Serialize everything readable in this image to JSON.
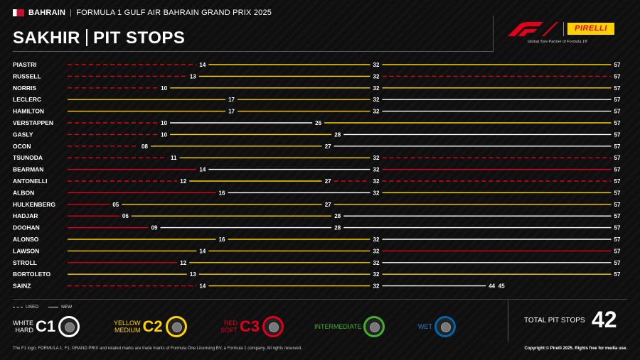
{
  "header": {
    "country": "BAHRAIN",
    "event": "FORMULA 1 GULF AIR BAHRAIN GRAND PRIX 2025",
    "title_left": "SAKHIR",
    "title_right": "PIT STOPS"
  },
  "brand": {
    "f1_logo": "F1 logo",
    "pirelli": "PIRELLI",
    "partner": "Global Tyre Partner of Formula 1®"
  },
  "colors": {
    "background": "#101010",
    "C1_hard": "#ffffff",
    "C2_medium": "#ffd200",
    "C3_soft": "#e2001a",
    "intermediate": "#43b02a",
    "wet": "#0067ad"
  },
  "chart_data": {
    "type": "bar",
    "x_range": [
      0,
      57
    ],
    "rows": [
      {
        "driver": "PIASTRI",
        "stints": [
          {
            "end": 14,
            "compound": "C3",
            "used": true
          },
          {
            "end": 32,
            "compound": "C2",
            "used": false
          },
          {
            "end": 57,
            "compound": "C2",
            "used": false
          }
        ]
      },
      {
        "driver": "RUSSELL",
        "stints": [
          {
            "end": 13,
            "compound": "C3",
            "used": true
          },
          {
            "end": 32,
            "compound": "C2",
            "used": false
          },
          {
            "end": 57,
            "compound": "C3",
            "used": true
          }
        ]
      },
      {
        "driver": "NORRIS",
        "stints": [
          {
            "end": 10,
            "compound": "C3",
            "used": true
          },
          {
            "end": 32,
            "compound": "C2",
            "used": false
          },
          {
            "end": 57,
            "compound": "C2",
            "used": false
          }
        ]
      },
      {
        "driver": "LECLERC",
        "stints": [
          {
            "end": 17,
            "compound": "C2",
            "used": false
          },
          {
            "end": 32,
            "compound": "C2",
            "used": false
          },
          {
            "end": 57,
            "compound": "C1",
            "used": false
          }
        ]
      },
      {
        "driver": "HAMILTON",
        "stints": [
          {
            "end": 17,
            "compound": "C2",
            "used": false
          },
          {
            "end": 32,
            "compound": "C2",
            "used": false
          },
          {
            "end": 57,
            "compound": "C1",
            "used": false
          }
        ]
      },
      {
        "driver": "VERSTAPPEN",
        "stints": [
          {
            "end": 10,
            "compound": "C3",
            "used": true
          },
          {
            "end": 26,
            "compound": "C1",
            "used": false
          },
          {
            "end": 57,
            "compound": "C2",
            "used": false
          }
        ]
      },
      {
        "driver": "GASLY",
        "stints": [
          {
            "end": 10,
            "compound": "C3",
            "used": true
          },
          {
            "end": 28,
            "compound": "C2",
            "used": false
          },
          {
            "end": 57,
            "compound": "C1",
            "used": false
          }
        ]
      },
      {
        "driver": "OCON",
        "stints": [
          {
            "end": 8,
            "label": "08",
            "compound": "C3",
            "used": true
          },
          {
            "end": 27,
            "compound": "C2",
            "used": false
          },
          {
            "end": 57,
            "compound": "C1",
            "used": false
          }
        ]
      },
      {
        "driver": "TSUNODA",
        "stints": [
          {
            "end": 11,
            "compound": "C3",
            "used": true
          },
          {
            "end": 32,
            "compound": "C2",
            "used": false
          },
          {
            "end": 57,
            "compound": "C3",
            "used": true
          }
        ]
      },
      {
        "driver": "BEARMAN",
        "stints": [
          {
            "end": 14,
            "compound": "C3",
            "used": false
          },
          {
            "end": 32,
            "compound": "C1",
            "used": false
          },
          {
            "end": 57,
            "compound": "C3",
            "used": false
          }
        ]
      },
      {
        "driver": "ANTONELLI",
        "stints": [
          {
            "end": 12,
            "compound": "C3",
            "used": true
          },
          {
            "end": 27,
            "compound": "C2",
            "used": false
          },
          {
            "end": 32,
            "compound": "C3",
            "used": true
          },
          {
            "end": 57,
            "compound": "C3",
            "used": true
          }
        ]
      },
      {
        "driver": "ALBON",
        "stints": [
          {
            "end": 16,
            "compound": "C3",
            "used": false
          },
          {
            "end": 32,
            "compound": "C1",
            "used": false
          },
          {
            "end": 57,
            "compound": "C2",
            "used": false
          }
        ]
      },
      {
        "driver": "HULKENBERG",
        "stints": [
          {
            "end": 5,
            "label": "05",
            "compound": "C3",
            "used": false
          },
          {
            "end": 27,
            "compound": "C2",
            "used": false
          },
          {
            "end": 57,
            "compound": "C2",
            "used": false
          }
        ]
      },
      {
        "driver": "HADJAR",
        "stints": [
          {
            "end": 6,
            "label": "06",
            "compound": "C3",
            "used": false
          },
          {
            "end": 28,
            "compound": "C2",
            "used": false
          },
          {
            "end": 57,
            "compound": "C1",
            "used": false
          }
        ]
      },
      {
        "driver": "DOOHAN",
        "stints": [
          {
            "end": 9,
            "label": "09",
            "compound": "C3",
            "used": false
          },
          {
            "end": 28,
            "compound": "C1",
            "used": false
          },
          {
            "end": 57,
            "compound": "C1",
            "used": false
          }
        ]
      },
      {
        "driver": "ALONSO",
        "stints": [
          {
            "end": 16,
            "compound": "C2",
            "used": false
          },
          {
            "end": 32,
            "compound": "C2",
            "used": false
          },
          {
            "end": 57,
            "compound": "C1",
            "used": false
          }
        ]
      },
      {
        "driver": "LAWSON",
        "stints": [
          {
            "end": 14,
            "compound": "C2",
            "used": false
          },
          {
            "end": 32,
            "compound": "C2",
            "used": false
          },
          {
            "end": 57,
            "compound": "C3",
            "used": false
          }
        ]
      },
      {
        "driver": "STROLL",
        "stints": [
          {
            "end": 12,
            "compound": "C3",
            "used": false
          },
          {
            "end": 32,
            "compound": "C2",
            "used": false
          },
          {
            "end": 57,
            "compound": "C1",
            "used": false
          }
        ]
      },
      {
        "driver": "BORTOLETO",
        "stints": [
          {
            "end": 13,
            "compound": "C2",
            "used": false
          },
          {
            "end": 32,
            "compound": "C2",
            "used": false
          },
          {
            "end": 57,
            "compound": "C2",
            "used": false
          }
        ]
      },
      {
        "driver": "SAINZ",
        "stints": [
          {
            "end": 14,
            "compound": "C3",
            "used": true
          },
          {
            "end": 32,
            "compound": "C2",
            "used": false
          },
          {
            "end": 44,
            "compound": "C1",
            "used": false
          },
          {
            "end": 45,
            "compound": "C3",
            "used": true
          }
        ]
      }
    ]
  },
  "legend": {
    "used": "USED",
    "new": "NEW",
    "compounds": [
      {
        "line1": "WHITE",
        "line2": "HARD",
        "code": "C1",
        "color": "#ffffff"
      },
      {
        "line1": "YELLOW",
        "line2": "MEDIUM",
        "code": "C2",
        "color": "#ffd200"
      },
      {
        "line1": "RED",
        "line2": "SOFT",
        "code": "C3",
        "color": "#e2001a"
      },
      {
        "line1": "INTERMEDIATE",
        "line2": "",
        "code": "",
        "color": "#43b02a"
      },
      {
        "line1": "WET",
        "line2": "",
        "code": "",
        "color": "#0067ad"
      }
    ]
  },
  "totals": {
    "label": "TOTAL PIT STOPS",
    "value": "42"
  },
  "footer": {
    "left": "The F1 logo, FORMULA 1, F1, GRAND PRIX and related marks are trade marks of Formula One Licensing BV, a Formula 1 company. All rights reserved.",
    "right": "Copyright © Pirelli 2025. Rights free for media use."
  }
}
